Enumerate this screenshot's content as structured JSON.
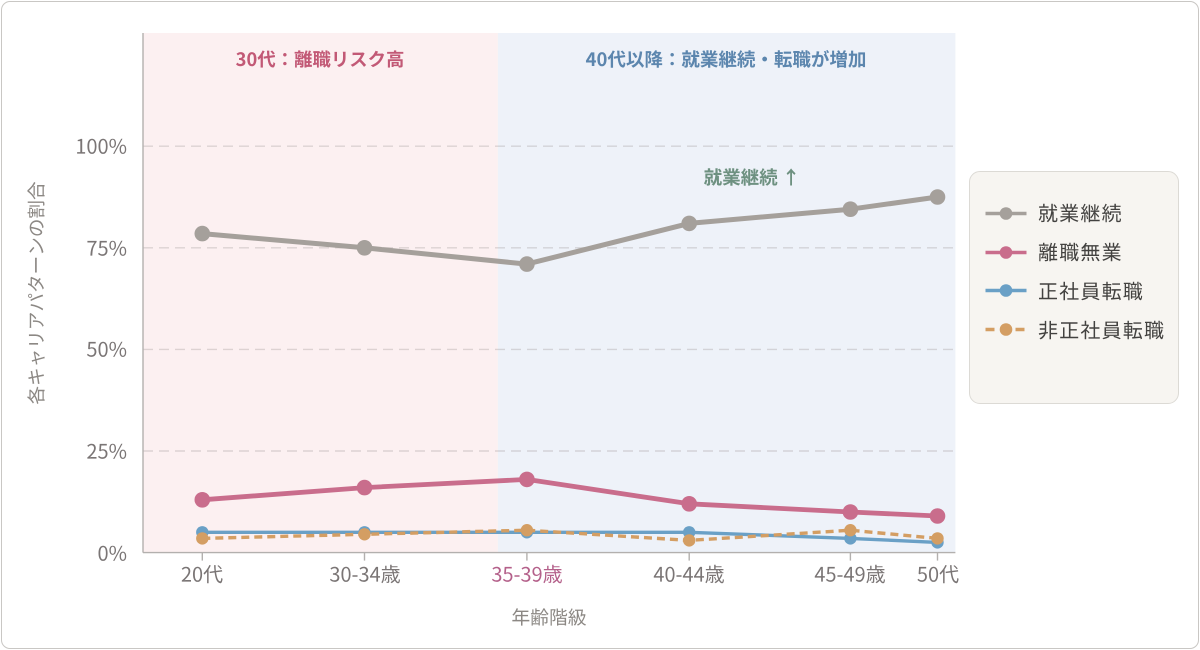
{
  "chart_data": {
    "type": "line",
    "title": "",
    "xlabel": "年齢階級",
    "ylabel": "各キャリアパターンの割合",
    "categories": [
      "20代",
      "30-34歳",
      "35-39歳",
      "40-44歳",
      "45-49歳",
      "50代"
    ],
    "x_positions": [
      0.073,
      0.2727,
      0.4725,
      0.6723,
      0.8708,
      0.978
    ],
    "y_ticks": [
      {
        "label": "0%",
        "value": 0
      },
      {
        "label": "25%",
        "value": 25
      },
      {
        "label": "50%",
        "value": 50
      },
      {
        "label": "75%",
        "value": 75
      },
      {
        "label": "100%",
        "value": 100
      }
    ],
    "ylim": [
      0,
      128
    ],
    "grid": "horizontal-dashed",
    "legend_position": "right",
    "series": [
      {
        "name": "就業継続",
        "color": "#a5a09b",
        "style": "solid",
        "line_width": 5,
        "dot_radius": 7.8,
        "values": [
          78.5,
          75,
          71,
          81,
          84.5,
          87.5
        ]
      },
      {
        "name": "離職無業",
        "color": "#c96d8c",
        "style": "solid",
        "line_width": 4.8,
        "dot_radius": 7.8,
        "values": [
          13,
          16,
          18,
          12,
          10,
          9
        ]
      },
      {
        "name": "正社員転職",
        "color": "#6aa0c6",
        "style": "solid",
        "line_width": 3.4,
        "dot_radius": 6.2,
        "values": [
          5,
          5,
          5,
          5,
          3.5,
          2.5
        ]
      },
      {
        "name": "非正社員転職",
        "color": "#d49e63",
        "style": "dashed",
        "line_width": 3.4,
        "dot_radius": 6.2,
        "values": [
          3.5,
          4.5,
          5.5,
          3,
          5.5,
          3.5
        ]
      }
    ],
    "regions": [
      {
        "label": "30代：離職リスク高",
        "fill": "#fcf0f1",
        "label_color": "#c25976",
        "x_start": 0,
        "x_end": 0.4368
      },
      {
        "label": "40代以降：就業継続・転職が増加",
        "fill": "#eef2f9",
        "label_color": "#5c86ae",
        "x_start": 0.4368,
        "x_end": 1
      }
    ],
    "annotation": {
      "text": "就業継続 ↑",
      "color": "#6e9181"
    },
    "highlighted_category": {
      "index": 2,
      "color": "#b4608a"
    }
  },
  "palette": {
    "axis_color": "#b3b0ae",
    "grid_color": "rgba(155,146,146,0.32)",
    "tick_label_color": "#7a7575",
    "axis_title_color": "#8c8884",
    "card_border_color": "#c9c7c4",
    "legend_bg": "#f7f5f1",
    "legend_border": "#dcdad5",
    "legend_text_color": "#434240"
  }
}
